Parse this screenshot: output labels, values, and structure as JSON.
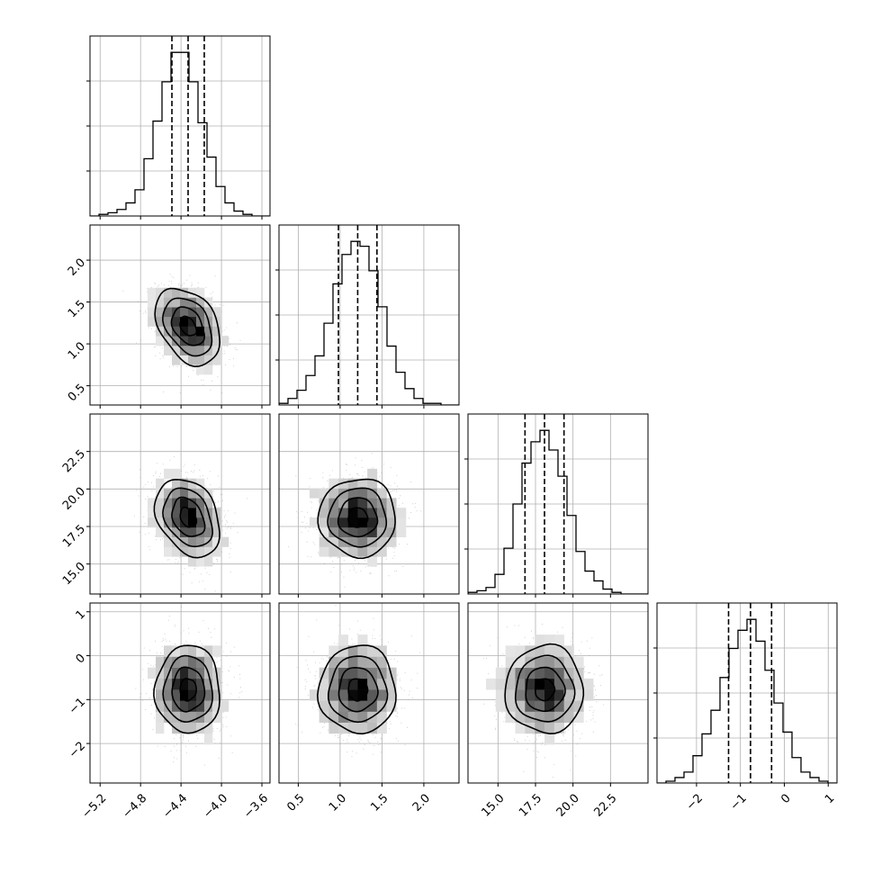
{
  "chart_data": {
    "type": "corner",
    "params": [
      {
        "center": -4.33,
        "sd": 0.16,
        "range": [
          -5.3,
          -3.52
        ],
        "ticks": [
          -5.2,
          -4.8,
          -4.4,
          -4.0,
          -3.6
        ],
        "tick_labels": [
          "-5.2",
          "-4.8",
          "-4.4",
          "-4.0",
          "-3.6"
        ],
        "quantiles": [
          -4.49,
          -4.33,
          -4.17
        ]
      },
      {
        "center": 1.21,
        "sd": 0.23,
        "range": [
          0.27,
          2.42
        ],
        "ticks": [
          0.5,
          1.0,
          1.5,
          2.0
        ],
        "tick_labels": [
          "0.5",
          "1.0",
          "1.5",
          "2.0"
        ],
        "quantiles": [
          0.98,
          1.21,
          1.44
        ]
      },
      {
        "center": 18.1,
        "sd": 1.3,
        "range": [
          13.0,
          25.0
        ],
        "ticks": [
          15.0,
          17.5,
          20.0,
          22.5
        ],
        "tick_labels": [
          "15.0",
          "17.5",
          "20.0",
          "22.5"
        ],
        "quantiles": [
          16.8,
          18.1,
          19.4
        ]
      },
      {
        "center": -0.77,
        "sd": 0.5,
        "range": [
          -2.9,
          1.2
        ],
        "ticks": [
          -2,
          -1,
          0,
          1
        ],
        "tick_labels": [
          "-2",
          "-1",
          "0",
          "1"
        ],
        "quantiles": [
          -1.27,
          -0.77,
          -0.29
        ]
      }
    ],
    "correlations": [
      [
        1.0,
        -0.35,
        -0.3,
        0.0
      ],
      [
        -0.35,
        1.0,
        0.0,
        0.0
      ],
      [
        -0.3,
        0.0,
        1.0,
        0.0
      ],
      [
        0.0,
        0.0,
        0.0,
        1.0
      ]
    ],
    "histograms": [
      [
        0,
        1,
        2,
        4,
        8,
        16,
        35,
        58,
        82,
        100,
        100,
        82,
        57,
        36,
        18,
        8,
        3,
        1,
        0,
        0
      ],
      [
        1,
        4,
        9,
        18,
        30,
        50,
        74,
        92,
        100,
        97,
        82,
        60,
        36,
        20,
        10,
        4,
        1,
        1,
        0,
        0
      ],
      [
        1,
        2,
        4,
        12,
        28,
        55,
        80,
        93,
        100,
        88,
        72,
        48,
        26,
        14,
        8,
        3,
        1,
        0,
        0,
        0
      ],
      [
        0,
        1,
        3,
        6,
        15,
        27,
        40,
        58,
        74,
        84,
        90,
        78,
        62,
        44,
        28,
        14,
        6,
        3,
        1,
        0
      ]
    ],
    "grid": true,
    "scatter": true,
    "contours": true
  }
}
